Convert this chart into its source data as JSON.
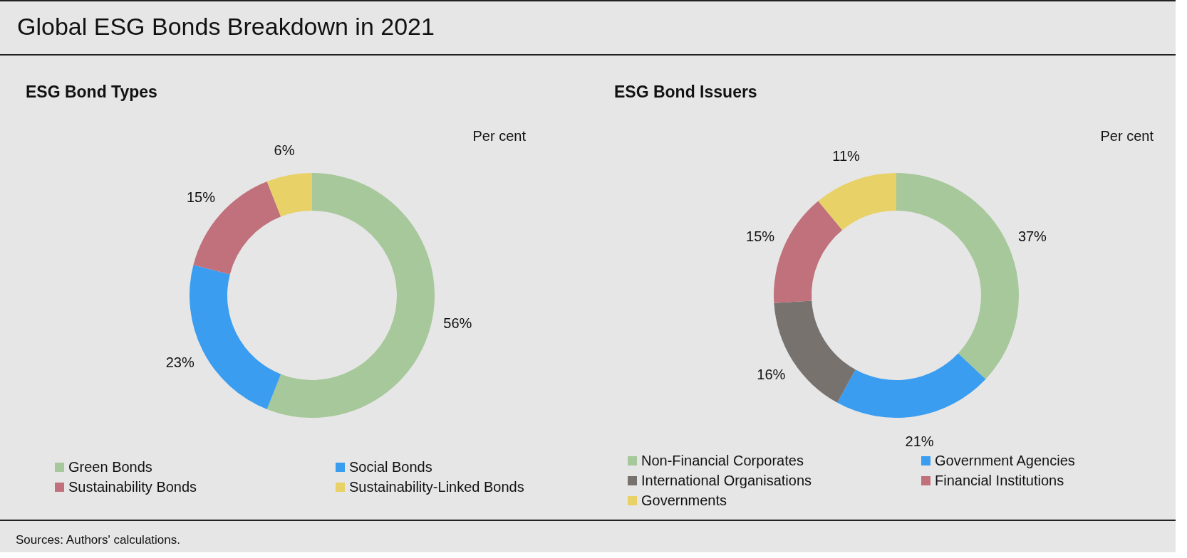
{
  "chart_data": [
    {
      "type": "other",
      "title": "Global ESG Bonds Breakdown in 2021",
      "annotations": [
        "Sources: Authors' calculations."
      ]
    },
    {
      "type": "donut",
      "title": "ESG Bond Types",
      "annotations": [
        "Per cent"
      ],
      "categories": [
        "Green Bonds",
        "Social Bonds",
        "Sustainability Bonds",
        "Sustainability-Linked Bonds"
      ],
      "values": [
        56,
        23,
        15,
        6
      ],
      "value_labels": [
        "56%",
        "23%",
        "15%",
        "6%"
      ],
      "colors": [
        "#a6c89a",
        "#3a9df0",
        "#c0717b",
        "#e8d166"
      ],
      "legend": "bottom"
    },
    {
      "type": "donut",
      "title": "ESG Bond Issuers",
      "annotations": [
        "Per cent"
      ],
      "categories": [
        "Non-Financial Corporates",
        "Government Agencies",
        "International Organisations",
        "Financial Institutions",
        "Governments"
      ],
      "values": [
        37,
        21,
        16,
        15,
        11
      ],
      "value_labels": [
        "37%",
        "21%",
        "16%",
        "15%",
        "11%"
      ],
      "colors": [
        "#a6c89a",
        "#3a9df0",
        "#78726f",
        "#c0717b",
        "#e8d166"
      ],
      "legend": "bottom"
    }
  ]
}
